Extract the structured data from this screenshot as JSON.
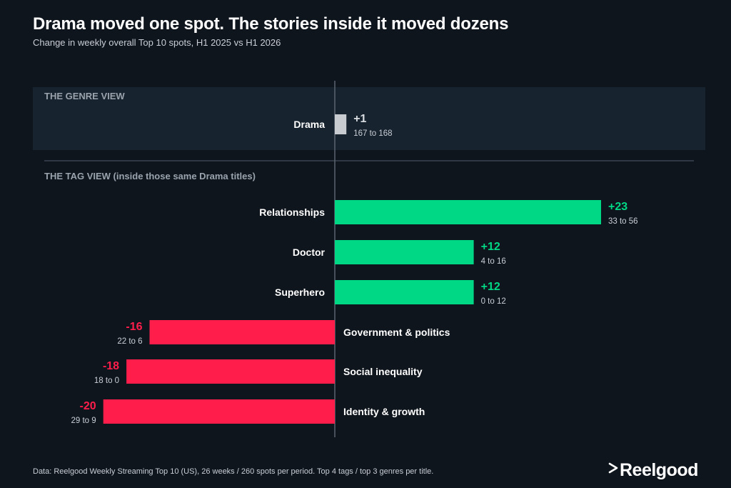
{
  "title": "Drama moved one spot. The stories inside it moved dozens",
  "subtitle": "Change in weekly overall Top 10 spots, H1 2025 vs H1 2026",
  "footer": "Data: Reelgood Weekly Streaming Top 10 (US), 26 weeks / 260 spots per period. Top 4 tags / top 3 genres per title.",
  "logo_text": "Reelgood",
  "colors": {
    "positive": "#00d885",
    "negative": "#ff1e4b",
    "neutral": "#c8cbd0",
    "panel": "#17232f",
    "section_label": "#9aa3ad",
    "sub_label": "#c9ced6"
  },
  "chart_data": {
    "type": "bar",
    "orientation": "horizontal",
    "xlim": [
      -20,
      23
    ],
    "sections": [
      {
        "label": "THE GENRE VIEW",
        "rows": [
          {
            "category": "Drama",
            "value": 1,
            "value_label": "+1",
            "range_label": "167 to 168",
            "from": 167,
            "to": 168
          }
        ]
      },
      {
        "label": "THE TAG VIEW  (inside those same Drama titles)",
        "rows": [
          {
            "category": "Relationships",
            "value": 23,
            "value_label": "+23",
            "range_label": "33 to 56",
            "from": 33,
            "to": 56
          },
          {
            "category": "Doctor",
            "value": 12,
            "value_label": "+12",
            "range_label": "4 to 16",
            "from": 4,
            "to": 16
          },
          {
            "category": "Superhero",
            "value": 12,
            "value_label": "+12",
            "range_label": "0 to 12",
            "from": 0,
            "to": 12
          },
          {
            "category": "Government & politics",
            "value": -16,
            "value_label": "-16",
            "range_label": "22 to 6",
            "from": 22,
            "to": 6
          },
          {
            "category": "Social inequality",
            "value": -18,
            "value_label": "-18",
            "range_label": "18 to 0",
            "from": 18,
            "to": 0
          },
          {
            "category": "Identity & growth",
            "value": -20,
            "value_label": "-20",
            "range_label": "29 to 9",
            "from": 29,
            "to": 9
          }
        ]
      }
    ]
  }
}
